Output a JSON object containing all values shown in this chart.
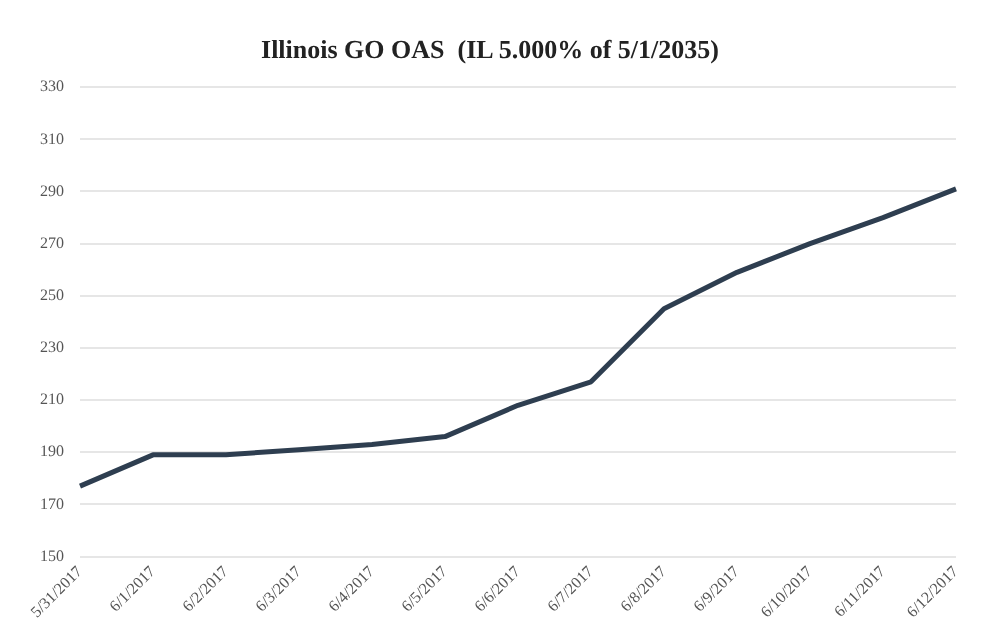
{
  "chart_data": {
    "type": "line",
    "title": "Illinois GO OAS  (IL 5.000% of 5/1/2035)",
    "categories": [
      "5/31/2017",
      "6/1/2017",
      "6/2/2017",
      "6/3/2017",
      "6/4/2017",
      "6/5/2017",
      "6/6/2017",
      "6/7/2017",
      "6/8/2017",
      "6/9/2017",
      "6/10/2017",
      "6/11/2017",
      "6/12/2017"
    ],
    "series": [
      {
        "color": "#2e3e50",
        "values": [
          177,
          189,
          189,
          191,
          193,
          196,
          208,
          217,
          245,
          259,
          270,
          280,
          291
        ]
      }
    ],
    "ylim": [
      150,
      330
    ],
    "yticks": [
      150,
      170,
      190,
      210,
      230,
      250,
      270,
      290,
      310,
      330
    ],
    "grid": "y",
    "legend": false,
    "marker": "none",
    "line_style": "solid"
  }
}
